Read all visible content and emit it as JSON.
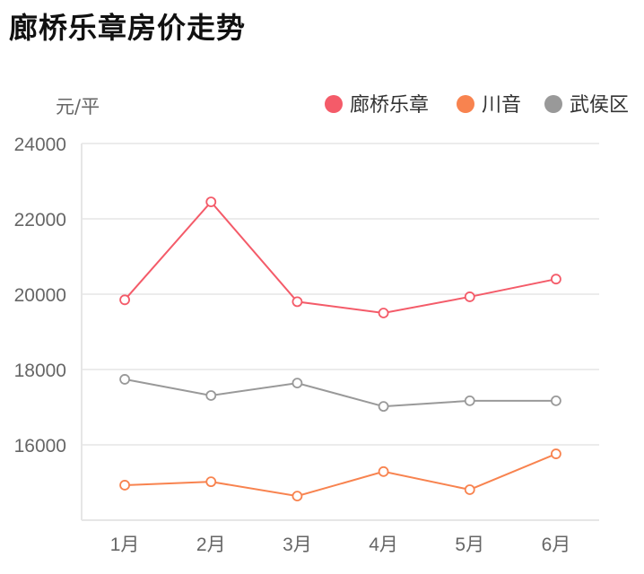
{
  "title": "廊桥乐章房价走势",
  "chart_data": {
    "type": "line",
    "title": "廊桥乐章房价走势",
    "ylabel": "元/平",
    "xlabel": "",
    "categories": [
      "1月",
      "2月",
      "3月",
      "4月",
      "5月",
      "6月"
    ],
    "ylim": [
      14000,
      24000
    ],
    "yticks": [
      16000,
      18000,
      20000,
      22000,
      24000
    ],
    "grid": true,
    "legend_position": "top-right",
    "markers": "hollow-circle",
    "series": [
      {
        "name": "廊桥乐章",
        "color": "#f45b69",
        "values": [
          19850,
          22450,
          19800,
          19500,
          19930,
          20400
        ]
      },
      {
        "name": "川音",
        "color": "#f8834f",
        "values": [
          14930,
          15020,
          14640,
          15290,
          14810,
          15760
        ]
      },
      {
        "name": "武侯区",
        "color": "#999999",
        "values": [
          17740,
          17310,
          17640,
          17020,
          17170,
          17170
        ]
      }
    ]
  }
}
